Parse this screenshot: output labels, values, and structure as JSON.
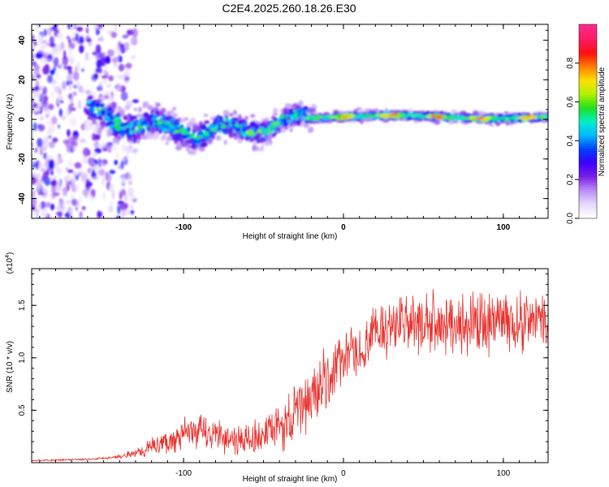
{
  "title": "C2E4.2025.260.18.26.E30",
  "colors": {
    "snr_line": "#e8302c",
    "axis": "#000000",
    "background": "#ffffff"
  },
  "chart_data": [
    {
      "type": "heatmap",
      "name": "spectrogram",
      "xlabel": "Height of straight line (km)",
      "ylabel": "Frequency (Hz)",
      "xlim": [
        -195,
        128
      ],
      "ylim": [
        -50,
        48
      ],
      "x_ticks": [
        -100,
        0,
        100
      ],
      "x_tick_labels": [
        "-100",
        "0",
        "100"
      ],
      "y_ticks": [
        -40,
        -20,
        0,
        20,
        40
      ],
      "y_tick_labels": [
        "-40",
        "-20",
        "0",
        "20",
        "40"
      ],
      "colorbar": {
        "label": "Normalized spectral amplitude",
        "range": [
          0,
          1
        ],
        "ticks": [
          0.0,
          0.2,
          0.4,
          0.6,
          0.8
        ],
        "tick_labels": [
          "0.0",
          "0.2",
          "0.4",
          "0.6",
          "0.8"
        ],
        "colormap": [
          "#ffffff",
          "#e6d8ff",
          "#b98cf5",
          "#7a1fe8",
          "#3a00ff",
          "#0040ff",
          "#00b8ff",
          "#00f0c8",
          "#20e020",
          "#b0f000",
          "#ffe000",
          "#ff8000",
          "#ff1010",
          "#ff1a60",
          "#ff2a8a"
        ]
      },
      "description_regions": [
        {
          "x_range": [
            -195,
            -150
          ],
          "y_range": [
            -50,
            48
          ],
          "level": [
            0.05,
            0.3
          ],
          "pattern": "scattered noise"
        },
        {
          "x_range": [
            -155,
            -20
          ],
          "y_center": [
            3,
            -10
          ],
          "level": [
            0.2,
            0.6
          ],
          "pattern": "broad band"
        },
        {
          "x_range": [
            -20,
            128
          ],
          "y_center": [
            1,
            2
          ],
          "level": [
            0.4,
            1.0
          ],
          "pattern": "narrow band"
        }
      ]
    },
    {
      "type": "line",
      "name": "snr",
      "xlabel": "Height of straight line (km)",
      "ylabel": "SNR (10 * v/v)",
      "scale_label": "(x10",
      "scale_exponent": "4",
      "scale_suffix": ")",
      "xlim": [
        -195,
        128
      ],
      "ylim": [
        0,
        18500
      ],
      "x_ticks": [
        -100,
        0,
        100
      ],
      "x_tick_labels": [
        "-100",
        "0",
        "100"
      ],
      "y_ticks": [
        5000,
        10000,
        15000
      ],
      "y_tick_labels": [
        "0.5",
        "1.0",
        "1.5"
      ],
      "series": [
        {
          "name": "SNR",
          "x": [
            -195,
            -180,
            -165,
            -150,
            -140,
            -130,
            -120,
            -110,
            -100,
            -90,
            -80,
            -70,
            -60,
            -50,
            -40,
            -30,
            -25,
            -20,
            -15,
            -10,
            -5,
            0,
            5,
            10,
            15,
            20,
            25,
            30,
            40,
            50,
            60,
            70,
            80,
            90,
            100,
            110,
            120,
            128
          ],
          "values": [
            200,
            250,
            300,
            400,
            600,
            900,
            1500,
            2000,
            2600,
            2900,
            2700,
            2300,
            2100,
            2600,
            3300,
            4500,
            5600,
            6300,
            7000,
            8000,
            9000,
            10000,
            10300,
            10500,
            11000,
            12500,
            13000,
            13000,
            13100,
            13200,
            13100,
            13300,
            13300,
            13400,
            13500,
            13400,
            13600,
            13500
          ],
          "amplitude": [
            50,
            60,
            70,
            100,
            150,
            400,
            700,
            1000,
            1300,
            1500,
            1400,
            1300,
            1300,
            1600,
            2000,
            2400,
            2600,
            2800,
            2800,
            2800,
            2500,
            2000,
            2000,
            2000,
            2000,
            2300,
            2500,
            2500,
            2500,
            2500,
            2500,
            2500,
            2500,
            2500,
            2500,
            2500,
            2500,
            2500
          ]
        }
      ]
    }
  ]
}
